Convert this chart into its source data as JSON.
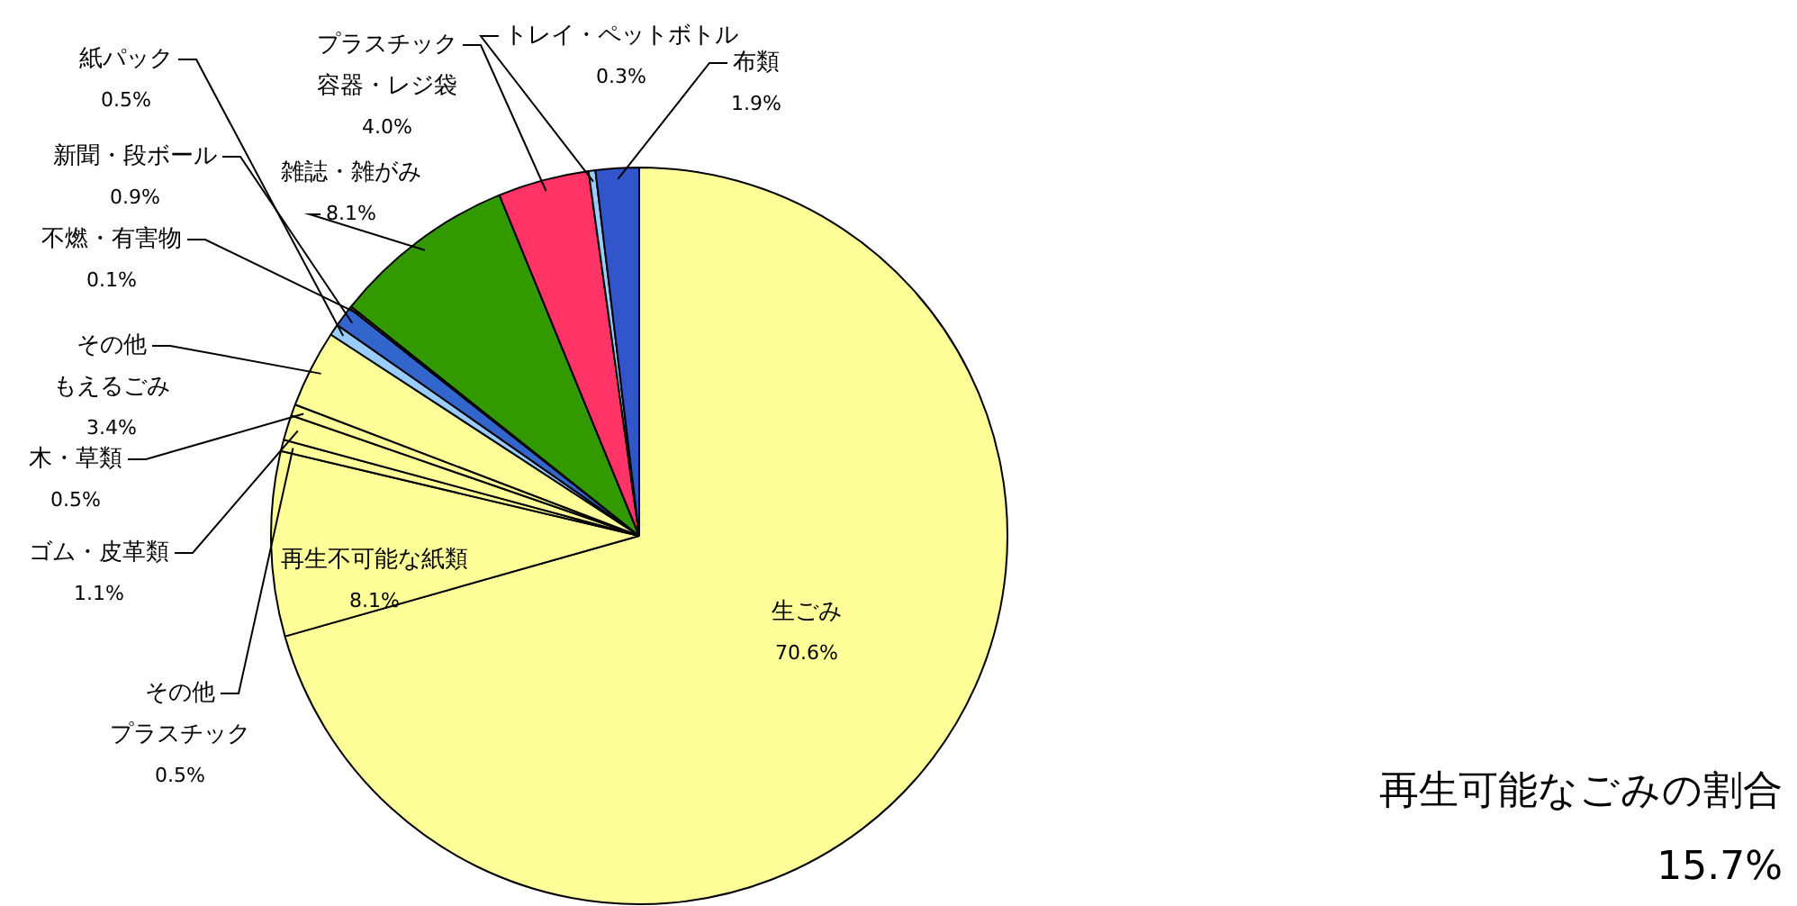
{
  "chart_data": {
    "type": "pie",
    "categories": [
      "生ごみ",
      "再生不可能な紙類",
      "その他プラスチック",
      "ゴム・皮革類",
      "木・草類",
      "その他もえるごみ",
      "紙パック",
      "新聞・段ボール",
      "不燃・有害物",
      "雑誌・雑がみ",
      "プラスチック容器・レジ袋",
      "トレイ・ペットボトル",
      "布類"
    ],
    "values": [
      70.6,
      8.1,
      0.5,
      1.1,
      0.5,
      3.4,
      0.5,
      0.9,
      0.1,
      8.1,
      4.0,
      0.3,
      1.9
    ],
    "value_labels": [
      "70.6%",
      "8.1%",
      "0.5%",
      "1.1%",
      "0.5%",
      "3.4%",
      "0.5%",
      "0.9%",
      "0.1%",
      "8.1%",
      "4.0%",
      "0.3%",
      "1.9%"
    ],
    "colors": [
      "#ffff99",
      "#ffff99",
      "#ffff99",
      "#ffff99",
      "#ffff99",
      "#ffff99",
      "#99ccff",
      "#3366cc",
      "#cc6600",
      "#339900",
      "#ff3366",
      "#99ccff",
      "#3355cc"
    ],
    "legend": false,
    "annotations": [
      "再生可能なごみの割合",
      "15.7%"
    ]
  }
}
